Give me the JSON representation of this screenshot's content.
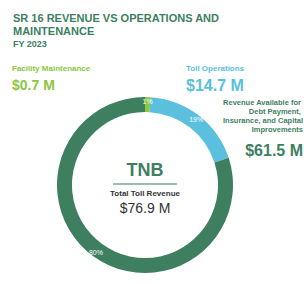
{
  "chart_data": {
    "type": "pie",
    "title": "SR 16 REVENUE VS OPERATIONS AND MAINTENANCE",
    "subtitle": "FY 2023",
    "categories": [
      "Facility Maintenance",
      "Toll Operations",
      "Revenue Available for Debt Payment, Insurance, and Capital Improvements"
    ],
    "values": [
      1,
      19,
      80
    ],
    "value_labels": [
      "1%",
      "19%",
      "80%"
    ],
    "amount_labels": [
      "$0.7 M",
      "$14.7 M",
      "$61.5 M"
    ],
    "colors": [
      "#8dc63f",
      "#5bc0de",
      "#3d7f5f"
    ],
    "data_labels": true,
    "center_title": "TNB",
    "center_subtitle": "Total Toll Revenue",
    "center_label": "$76.9 M"
  }
}
